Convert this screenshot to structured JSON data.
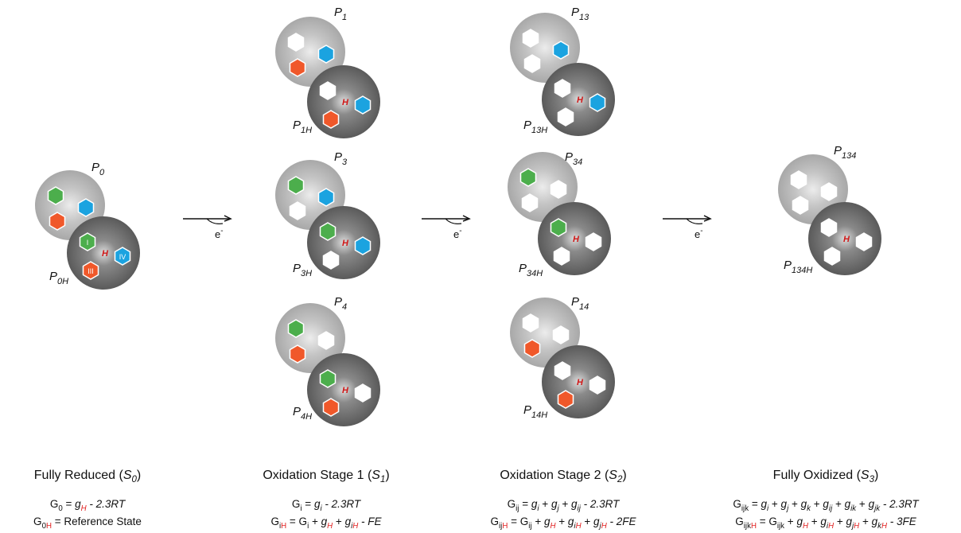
{
  "molecules": [
    {
      "label": {
        "base": "P",
        "sub": "0"
      },
      "h_label": {
        "base": "P",
        "sub": "0H"
      },
      "h": "H",
      "site_labels": [
        "I",
        "IV",
        "III"
      ]
    },
    {
      "label": {
        "base": "P",
        "sub": "1"
      },
      "h_label": {
        "base": "P",
        "sub": "1H"
      },
      "h": "H"
    },
    {
      "label": {
        "base": "P",
        "sub": "3"
      },
      "h_label": {
        "base": "P",
        "sub": "3H"
      },
      "h": "H"
    },
    {
      "label": {
        "base": "P",
        "sub": "4"
      },
      "h_label": {
        "base": "P",
        "sub": "4H"
      },
      "h": "H"
    },
    {
      "label": {
        "base": "P",
        "sub": "13"
      },
      "h_label": {
        "base": "P",
        "sub": "13H"
      },
      "h": "H"
    },
    {
      "label": {
        "base": "P",
        "sub": "34"
      },
      "h_label": {
        "base": "P",
        "sub": "34H"
      },
      "h": "H"
    },
    {
      "label": {
        "base": "P",
        "sub": "14"
      },
      "h_label": {
        "base": "P",
        "sub": "14H"
      },
      "h": "H"
    },
    {
      "label": {
        "base": "P",
        "sub": "134"
      },
      "h_label": {
        "base": "P",
        "sub": "134H"
      },
      "h": "H"
    }
  ],
  "arrows": [
    {
      "text": "e",
      "sup": "-"
    },
    {
      "text": "e",
      "sup": "-"
    },
    {
      "text": "e",
      "sup": "-"
    }
  ],
  "stages": [
    {
      "title": [
        {
          "text": "Fully Reduced ("
        },
        {
          "text": "S",
          "italic": true
        },
        {
          "text": "0",
          "sub": true,
          "italic": true
        },
        {
          "text": ")"
        }
      ],
      "equations": [
        [
          {
            "text": "G"
          },
          {
            "text": "0",
            "sub": true
          },
          {
            "text": " = "
          },
          {
            "text": "g",
            "italic": true
          },
          {
            "text": "H",
            "sub": true,
            "italic": true,
            "color": "#e02020"
          },
          {
            "text": " - 2.3RT",
            "italic": true
          }
        ],
        [
          {
            "text": "G"
          },
          {
            "text": "0",
            "sub": true
          },
          {
            "text": "H",
            "sub": true,
            "color": "#e02020"
          },
          {
            "text": " = Reference State"
          }
        ]
      ]
    },
    {
      "title": [
        {
          "text": "Oxidation Stage 1 ("
        },
        {
          "text": "S",
          "italic": true
        },
        {
          "text": "1",
          "sub": true,
          "italic": true
        },
        {
          "text": ")"
        }
      ],
      "equations": [
        [
          {
            "text": "G"
          },
          {
            "text": "i",
            "sub": true
          },
          {
            "text": " = "
          },
          {
            "text": "g",
            "italic": true
          },
          {
            "text": "i",
            "sub": true,
            "italic": true
          },
          {
            "text": " - 2.3RT",
            "italic": true
          }
        ],
        [
          {
            "text": "G"
          },
          {
            "text": "i",
            "sub": true
          },
          {
            "text": "H",
            "sub": true,
            "color": "#e02020"
          },
          {
            "text": " = G"
          },
          {
            "text": "i",
            "sub": true
          },
          {
            "text": " + "
          },
          {
            "text": "g",
            "italic": true
          },
          {
            "text": "H",
            "sub": true,
            "italic": true,
            "color": "#e02020"
          },
          {
            "text": " + "
          },
          {
            "text": "g",
            "italic": true
          },
          {
            "text": "i",
            "sub": true,
            "italic": true
          },
          {
            "text": "H",
            "sub": true,
            "italic": true,
            "color": "#e02020"
          },
          {
            "text": " - FE",
            "italic": true
          }
        ]
      ]
    },
    {
      "title": [
        {
          "text": "Oxidation Stage 2 ("
        },
        {
          "text": "S",
          "italic": true
        },
        {
          "text": "2",
          "sub": true,
          "italic": true
        },
        {
          "text": ")"
        }
      ],
      "equations": [
        [
          {
            "text": "G"
          },
          {
            "text": "ij",
            "sub": true
          },
          {
            "text": " = "
          },
          {
            "text": "g",
            "italic": true
          },
          {
            "text": "i",
            "sub": true,
            "italic": true
          },
          {
            "text": " + "
          },
          {
            "text": "g",
            "italic": true
          },
          {
            "text": "j",
            "sub": true,
            "italic": true
          },
          {
            "text": " + "
          },
          {
            "text": "g",
            "italic": true
          },
          {
            "text": "ij",
            "sub": true,
            "italic": true
          },
          {
            "text": " - 2.3RT",
            "italic": true
          }
        ],
        [
          {
            "text": "G"
          },
          {
            "text": "ij",
            "sub": true
          },
          {
            "text": "H",
            "sub": true,
            "color": "#e02020"
          },
          {
            "text": " = G"
          },
          {
            "text": "ij",
            "sub": true
          },
          {
            "text": " + "
          },
          {
            "text": "g",
            "italic": true
          },
          {
            "text": "H",
            "sub": true,
            "italic": true,
            "color": "#e02020"
          },
          {
            "text": " + "
          },
          {
            "text": "g",
            "italic": true
          },
          {
            "text": "i",
            "sub": true,
            "italic": true
          },
          {
            "text": "H",
            "sub": true,
            "italic": true,
            "color": "#e02020"
          },
          {
            "text": " + "
          },
          {
            "text": "g",
            "italic": true
          },
          {
            "text": "j",
            "sub": true,
            "italic": true
          },
          {
            "text": "H",
            "sub": true,
            "italic": true,
            "color": "#e02020"
          },
          {
            "text": " - 2FE",
            "italic": true
          }
        ]
      ]
    },
    {
      "title": [
        {
          "text": "Fully Oxidized ("
        },
        {
          "text": "S",
          "italic": true
        },
        {
          "text": "3",
          "sub": true,
          "italic": true
        },
        {
          "text": ")"
        }
      ],
      "equations": [
        [
          {
            "text": "G"
          },
          {
            "text": "ijk",
            "sub": true
          },
          {
            "text": " = "
          },
          {
            "text": "g",
            "italic": true
          },
          {
            "text": "i",
            "sub": true,
            "italic": true
          },
          {
            "text": " + "
          },
          {
            "text": "g",
            "italic": true
          },
          {
            "text": "j",
            "sub": true,
            "italic": true
          },
          {
            "text": " + "
          },
          {
            "text": "g",
            "italic": true
          },
          {
            "text": "k",
            "sub": true,
            "italic": true
          },
          {
            "text": " + "
          },
          {
            "text": "g",
            "italic": true
          },
          {
            "text": "ij",
            "sub": true,
            "italic": true
          },
          {
            "text": " + "
          },
          {
            "text": "g",
            "italic": true
          },
          {
            "text": "ik",
            "sub": true,
            "italic": true
          },
          {
            "text": " + "
          },
          {
            "text": "g",
            "italic": true
          },
          {
            "text": "jk",
            "sub": true,
            "italic": true
          },
          {
            "text": " - 2.3RT",
            "italic": true
          }
        ],
        [
          {
            "text": "G"
          },
          {
            "text": "ijk",
            "sub": true
          },
          {
            "text": "H",
            "sub": true,
            "color": "#e02020"
          },
          {
            "text": " = G"
          },
          {
            "text": "ijk",
            "sub": true
          },
          {
            "text": " + "
          },
          {
            "text": "g",
            "italic": true
          },
          {
            "text": "H",
            "sub": true,
            "italic": true,
            "color": "#e02020"
          },
          {
            "text": " + "
          },
          {
            "text": "g",
            "italic": true
          },
          {
            "text": "i",
            "sub": true,
            "italic": true
          },
          {
            "text": "H",
            "sub": true,
            "italic": true,
            "color": "#e02020"
          },
          {
            "text": " + "
          },
          {
            "text": "g",
            "italic": true
          },
          {
            "text": "j",
            "sub": true,
            "italic": true
          },
          {
            "text": "H",
            "sub": true,
            "italic": true,
            "color": "#e02020"
          },
          {
            "text": " + "
          },
          {
            "text": "g",
            "italic": true
          },
          {
            "text": "k",
            "sub": true,
            "italic": true
          },
          {
            "text": "H",
            "sub": true,
            "italic": true,
            "color": "#e02020"
          },
          {
            "text": " - 3FE",
            "italic": true
          }
        ]
      ]
    }
  ]
}
